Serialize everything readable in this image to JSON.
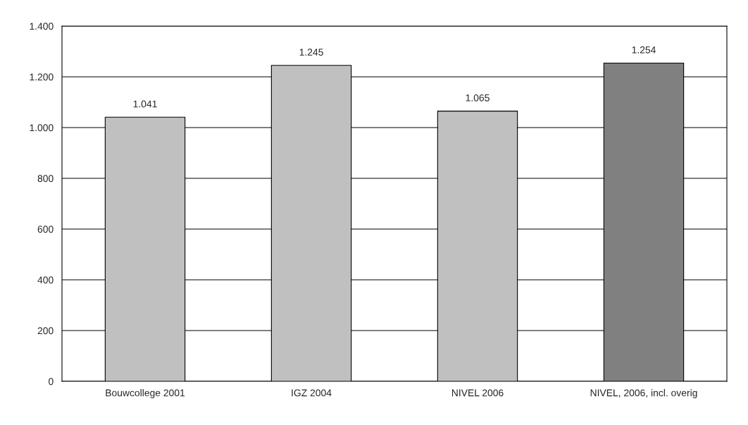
{
  "chart_data": {
    "type": "bar",
    "categories": [
      "Bouwcollege 2001",
      "IGZ 2004",
      "NIVEL 2006",
      "NIVEL, 2006, incl. overig"
    ],
    "values": [
      1041,
      1245,
      1065,
      1254
    ],
    "colors": [
      "#c0c0c0",
      "#c0c0c0",
      "#c0c0c0",
      "#808080"
    ],
    "value_labels": [
      "1.041",
      "1.245",
      "1.065",
      "1.254"
    ],
    "ylim": [
      0,
      1400
    ],
    "yticks": [
      0,
      {
        "value": 200,
        "label": "200"
      },
      {
        "value": 400,
        "label": "400"
      },
      {
        "value": 600,
        "label": "600"
      },
      {
        "value": 800,
        "label": "800"
      },
      {
        "value": 1000,
        "label": "1.000"
      },
      {
        "value": 1200,
        "label": "1.200"
      },
      {
        "value": 1400,
        "label": "1.400"
      }
    ],
    "grid": "y"
  }
}
